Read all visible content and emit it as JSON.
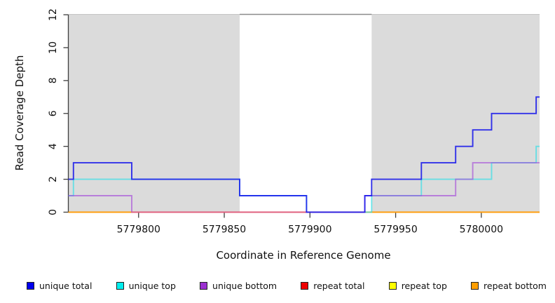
{
  "chart_data": {
    "type": "line",
    "subtype": "step-coverage",
    "title": "",
    "xlabel": "Coordinate in Reference Genome",
    "ylabel": "Read Coverage Depth",
    "xlim": [
      5779759,
      5780034
    ],
    "ylim": [
      0,
      12
    ],
    "x_ticks": [
      5779800,
      5779850,
      5779900,
      5779950,
      5780000
    ],
    "y_ticks": [
      0,
      2,
      4,
      6,
      8,
      10,
      12
    ],
    "grid": false,
    "shaded_regions": [
      {
        "name": "flank-left",
        "x0": 5779759,
        "x1": 5779859,
        "color": "#DBDBDB"
      },
      {
        "name": "flank-right",
        "x0": 5779936,
        "x1": 5780034,
        "color": "#DBDBDB"
      }
    ],
    "gap_top_line": {
      "x0": 5779859,
      "x1": 5779936,
      "y": 12,
      "color": "#8A8A8A"
    },
    "plot_top_edge_color": "#C4C4C4",
    "axis_color": "#3F3F3F",
    "series": [
      {
        "name": "unique total",
        "legend_color": "#0000EE",
        "line_color": "rgba(25,25,235,0.88)",
        "points": [
          [
            5779759,
            2
          ],
          [
            5779762,
            3
          ],
          [
            5779796,
            2
          ],
          [
            5779859,
            1
          ],
          [
            5779898,
            0
          ],
          [
            5779932,
            1
          ],
          [
            5779936,
            2
          ],
          [
            5779965,
            3
          ],
          [
            5779985,
            4
          ],
          [
            5779995,
            5
          ],
          [
            5780006,
            6
          ],
          [
            5780032,
            7
          ]
        ]
      },
      {
        "name": "unique top",
        "legend_color": "#00EEEE",
        "line_color": "rgba(35,225,232,0.62)",
        "points": [
          [
            5779759,
            1
          ],
          [
            5779762,
            2
          ],
          [
            5779859,
            1
          ],
          [
            5779898,
            0
          ],
          [
            5779936,
            1
          ],
          [
            5779965,
            2
          ],
          [
            5780006,
            3
          ],
          [
            5780032,
            4
          ]
        ]
      },
      {
        "name": "unique bottom",
        "legend_color": "#9B30D0",
        "line_color": "rgba(163,70,218,0.62)",
        "points": [
          [
            5779759,
            1
          ],
          [
            5779796,
            0
          ],
          [
            5779932,
            1
          ],
          [
            5779985,
            2
          ],
          [
            5779995,
            3
          ]
        ]
      },
      {
        "name": "repeat total",
        "legend_color": "#EE0000",
        "line_color": "rgba(225,40,50,0.85)",
        "points": [
          [
            5779759,
            0
          ]
        ]
      },
      {
        "name": "repeat top",
        "legend_color": "#FFFF00",
        "line_color": "rgba(250,250,0,0.9)",
        "points": [
          [
            5779759,
            0
          ]
        ]
      },
      {
        "name": "repeat bottom",
        "legend_color": "#FF9E00",
        "line_color": "rgba(255,158,15,1)",
        "points": [
          [
            5779759,
            0
          ]
        ]
      }
    ],
    "overlap_segments": [
      {
        "x0": 5779796,
        "x1": 5779932,
        "y": 0,
        "color": "#E0607F"
      }
    ],
    "legend": {
      "position": "bottom",
      "entries": [
        {
          "label": "unique total"
        },
        {
          "label": "unique top"
        },
        {
          "label": "unique bottom"
        },
        {
          "label": "repeat total"
        },
        {
          "label": "repeat top"
        },
        {
          "label": "repeat bottom"
        }
      ]
    }
  }
}
